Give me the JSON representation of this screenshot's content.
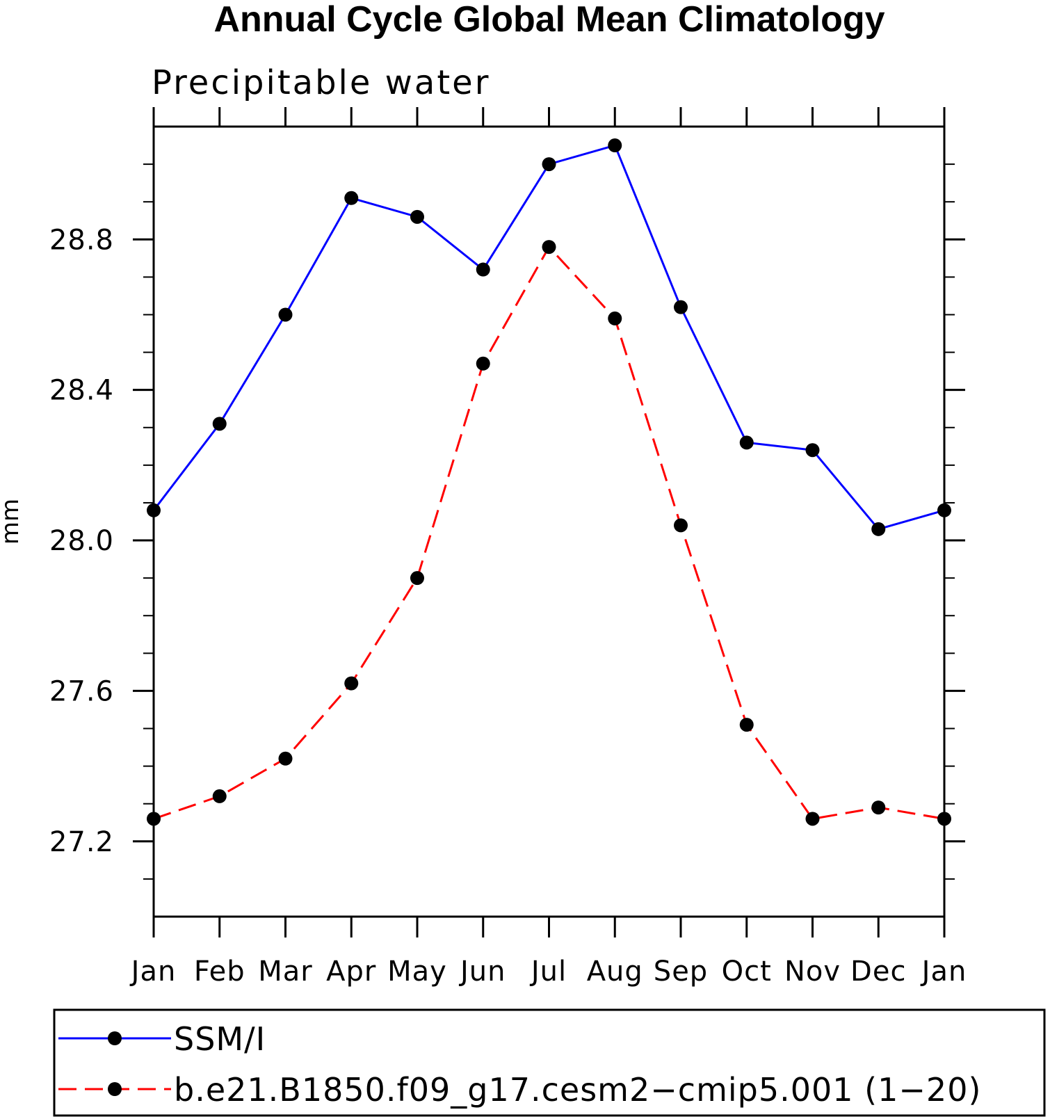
{
  "chart_data": {
    "type": "line",
    "title": "Annual Cycle Global Mean Climatology",
    "subtitle": "Precipitable water",
    "xlabel": "",
    "ylabel": "mm",
    "categories": [
      "Jan",
      "Feb",
      "Mar",
      "Apr",
      "May",
      "Jun",
      "Jul",
      "Aug",
      "Sep",
      "Oct",
      "Nov",
      "Dec",
      "Jan"
    ],
    "ylim": [
      27.0,
      29.1
    ],
    "yticks": [
      27.2,
      27.6,
      28.0,
      28.4,
      28.8
    ],
    "ytick_labels": [
      "27.2",
      "27.6",
      "28.0",
      "28.4",
      "28.8"
    ],
    "series": [
      {
        "name": "SSM/I",
        "color": "#0000ff",
        "dash": "solid",
        "marker": "filled-circle",
        "values": [
          28.08,
          28.31,
          28.6,
          28.91,
          28.86,
          28.72,
          29.0,
          29.05,
          28.62,
          28.26,
          28.24,
          28.03,
          28.08
        ]
      },
      {
        "name": "b.e21.B1850.f09_g17.cesm2−cmip5.001 (1−20)",
        "color": "#ff0000",
        "dash": "dashed",
        "marker": "filled-circle",
        "values": [
          27.26,
          27.32,
          27.42,
          27.62,
          27.9,
          28.47,
          28.78,
          28.59,
          28.04,
          27.51,
          27.26,
          27.29,
          27.26
        ]
      }
    ],
    "legend": {
      "position": "bottom",
      "entries": [
        "SSM/I",
        "b.e21.B1850.f09_g17.cesm2−cmip5.001 (1−20)"
      ]
    },
    "grid": false
  }
}
